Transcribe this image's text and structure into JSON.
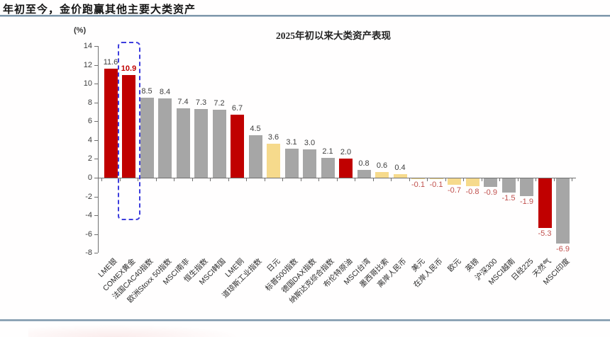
{
  "page": {
    "background": "#ffffff",
    "rule_color": "#7e97ab"
  },
  "header": {
    "title": "年初至今，金价跑赢其他主要大类资产"
  },
  "chart_data": {
    "type": "bar",
    "title": "2025年初以来大类资产表现",
    "ylabel": "(%)",
    "ylim": [
      -8,
      14
    ],
    "ytick_step": 2,
    "yticks": [
      14,
      12,
      10,
      8,
      6,
      4,
      2,
      0,
      -2,
      -4,
      -6,
      -8
    ],
    "grid": false,
    "legend": "none",
    "categories": [
      "LME银",
      "COMEX黄金",
      "法国CAC40指数",
      "欧洲Stoxx 50指数",
      "MSCI南非",
      "恒生指数",
      "MSCI韩国",
      "LME铜",
      "道琼斯工业指数",
      "日元",
      "标普500指数",
      "德国DAX指数",
      "纳斯达克综合指数",
      "布伦特原油",
      "MSCI台湾",
      "墨西哥比索",
      "离岸人民币",
      "美元",
      "在岸人民币",
      "欧元",
      "英镑",
      "沪深300",
      "MSCI越南",
      "日经225",
      "天然气",
      "MSCI印度"
    ],
    "values": [
      11.6,
      10.9,
      8.5,
      8.4,
      7.4,
      7.3,
      7.2,
      6.7,
      4.5,
      3.6,
      3.1,
      3.0,
      2.1,
      2.0,
      0.8,
      0.6,
      0.4,
      -0.1,
      -0.1,
      -0.7,
      -0.8,
      -0.9,
      -1.5,
      -1.9,
      -5.3,
      -6.9
    ],
    "bar_colors": [
      "red",
      "red",
      "gray",
      "gray",
      "gray",
      "gray",
      "gray",
      "red",
      "gray",
      "yellow",
      "gray",
      "gray",
      "gray",
      "red",
      "gray",
      "yellow",
      "yellow",
      "yellow",
      "yellow",
      "yellow",
      "yellow",
      "gray",
      "gray",
      "gray",
      "red",
      "gray"
    ],
    "highlight": {
      "index": 1,
      "category": "COMEX黄金",
      "value_label": "10.9",
      "style": "blue-dashed-box"
    },
    "palette": {
      "red": "#c00000",
      "gray": "#a6a6a6",
      "yellow": "#f6da8c",
      "positive_label": "#3f3f3f",
      "negative_label": "#c0504d",
      "highlight_label": "#c00000",
      "highlight_box": "#3d3ddd",
      "axis": "#707070"
    }
  }
}
